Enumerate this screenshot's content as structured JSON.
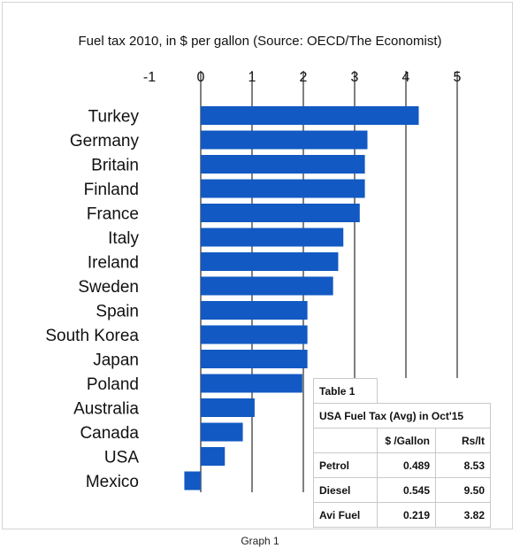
{
  "chart_data": {
    "type": "bar",
    "orientation": "horizontal",
    "title": "Fuel tax 2010, in $ per gallon (Source: OECD/The Economist)",
    "categories": [
      "Turkey",
      "Germany",
      "Britain",
      "Finland",
      "France",
      "Italy",
      "Ireland",
      "Sweden",
      "Spain",
      "South Korea",
      "Japan",
      "Poland",
      "Australia",
      "Canada",
      "USA",
      "Mexico"
    ],
    "values": [
      4.25,
      3.25,
      3.2,
      3.2,
      3.1,
      2.78,
      2.68,
      2.58,
      2.08,
      2.08,
      2.08,
      1.98,
      1.05,
      0.82,
      0.47,
      -0.32
    ],
    "xlim": [
      -1,
      5
    ],
    "xticks": [
      "-1",
      "0",
      "1",
      "2",
      "3",
      "4",
      "5"
    ],
    "grid": true,
    "bar_color": "#1259c3"
  },
  "table": {
    "title": "Table 1",
    "heading": "USA Fuel Tax (Avg) in Oct'15",
    "col_headers": [
      "$ /Gallon",
      "Rs/lt"
    ],
    "rows": [
      {
        "label": "Petrol",
        "usd": "0.489",
        "rs": "8.53"
      },
      {
        "label": "Diesel",
        "usd": "0.545",
        "rs": "9.50"
      },
      {
        "label": "Avi Fuel",
        "usd": "0.219",
        "rs": "3.82"
      }
    ]
  },
  "caption": "Graph 1"
}
